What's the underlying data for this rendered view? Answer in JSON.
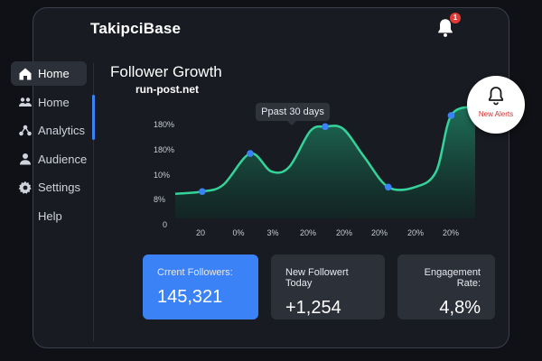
{
  "app": {
    "brand": "TakipciBase"
  },
  "notifications": {
    "badge_count": "1"
  },
  "sidebar": {
    "items": [
      {
        "label": "Home",
        "icon": "home-icon",
        "active": true
      },
      {
        "label": "Home",
        "icon": "users-icon",
        "active": false
      },
      {
        "label": "Analytics",
        "icon": "analytics-icon",
        "active": false
      },
      {
        "label": "Audience",
        "icon": "person-icon",
        "active": false
      },
      {
        "label": "Settings",
        "icon": "gear-icon",
        "active": false
      },
      {
        "label": "Help",
        "icon": "",
        "active": false
      }
    ]
  },
  "main": {
    "title": "Follower Growth",
    "watermark": "run-post.net",
    "tooltip": "Ppast 30 days"
  },
  "alerts": {
    "label": "New Alerts",
    "icon": "bell-icon"
  },
  "chart_data": {
    "type": "area",
    "title": "Follower Growth",
    "y_tick_labels": [
      "180%",
      "180%",
      "10%",
      "8%",
      "0"
    ],
    "x_tick_labels": [
      "20",
      "0%",
      "3%",
      "20%",
      "20%",
      "20%",
      "20%",
      "20%"
    ],
    "points": [
      {
        "x": 0.0,
        "y": 0.22
      },
      {
        "x": 0.09,
        "y": 0.24
      },
      {
        "x": 0.16,
        "y": 0.3
      },
      {
        "x": 0.25,
        "y": 0.58
      },
      {
        "x": 0.32,
        "y": 0.42
      },
      {
        "x": 0.38,
        "y": 0.46
      },
      {
        "x": 0.45,
        "y": 0.78
      },
      {
        "x": 0.5,
        "y": 0.82
      },
      {
        "x": 0.56,
        "y": 0.8
      },
      {
        "x": 0.63,
        "y": 0.55
      },
      {
        "x": 0.71,
        "y": 0.28
      },
      {
        "x": 0.8,
        "y": 0.28
      },
      {
        "x": 0.87,
        "y": 0.42
      },
      {
        "x": 0.92,
        "y": 0.92
      },
      {
        "x": 1.0,
        "y": 1.0
      }
    ],
    "markers": [
      1,
      3,
      7,
      10,
      13
    ],
    "colors": {
      "line": "#34d399",
      "fill": "#0f5c47",
      "marker": "#3b82f6"
    },
    "grid": false,
    "legend": "none"
  },
  "stats": [
    {
      "label": "Crrent Followers:",
      "value": "145,321",
      "style": "blue"
    },
    {
      "label": "New Followert Today",
      "value": "+1,254",
      "style": "grey"
    },
    {
      "label": "Engagement Rate:",
      "value": "4,8%",
      "style": "grey"
    }
  ]
}
